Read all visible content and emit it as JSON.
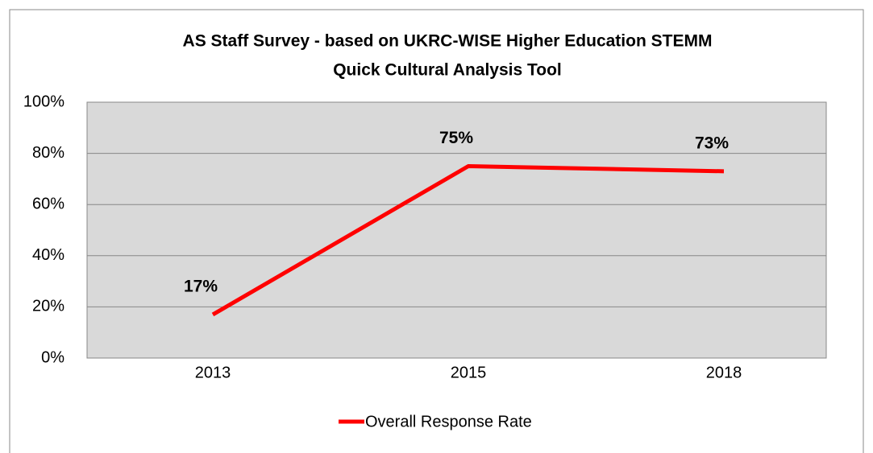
{
  "chart_data": {
    "type": "line",
    "title": [
      "AS Staff Survey - based on UKRC-WISE Higher Education STEMM",
      "Quick Cultural Analysis Tool"
    ],
    "categories": [
      "2013",
      "2015",
      "2018"
    ],
    "series": [
      {
        "name": "Overall Response Rate",
        "color": "#ff0000",
        "values": [
          17,
          75,
          73
        ],
        "value_labels": [
          "17%",
          "75%",
          "73%"
        ]
      }
    ],
    "ylim": [
      0,
      100
    ],
    "yticks": [
      {
        "value": 0,
        "label": "0%"
      },
      {
        "value": 20,
        "label": "20%"
      },
      {
        "value": 40,
        "label": "40%"
      },
      {
        "value": 60,
        "label": "60%"
      },
      {
        "value": 80,
        "label": "80%"
      },
      {
        "value": 100,
        "label": "100%"
      }
    ],
    "grid": true,
    "legend": "bottom"
  }
}
